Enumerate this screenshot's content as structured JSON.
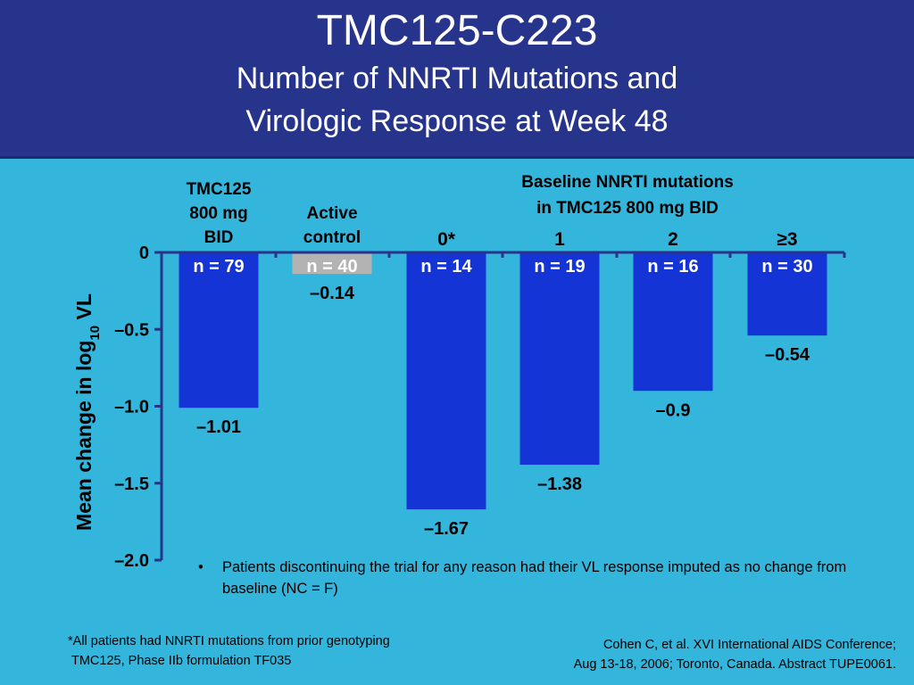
{
  "slide": {
    "title": "TMC125-C223",
    "subtitle_line1": "Number of NNRTI Mutations and",
    "subtitle_line2": "Virologic Response at Week 48"
  },
  "chart_data": {
    "type": "bar",
    "categories": [
      "TMC125 800 mg BID",
      "Active control",
      "0*",
      "1",
      "2",
      "≥3"
    ],
    "category_label_lines": [
      [
        "TMC125",
        "800 mg",
        "BID"
      ],
      [
        "Active",
        "control"
      ],
      [
        "0*"
      ],
      [
        "1"
      ],
      [
        "2"
      ],
      [
        "≥3"
      ]
    ],
    "n_labels": [
      "n = 79",
      "n = 40",
      "n = 14",
      "n = 19",
      "n = 16",
      "n = 30"
    ],
    "values": [
      -1.01,
      -0.14,
      -1.67,
      -1.38,
      -0.9,
      -0.54
    ],
    "value_labels": [
      "–1.01",
      "–0.14",
      "–1.67",
      "–1.38",
      "–0.9",
      "–0.54"
    ],
    "bar_colors": [
      "#1534d6",
      "#b3b3b3",
      "#1534d6",
      "#1534d6",
      "#1534d6",
      "#1534d6"
    ],
    "group_header_line1": "Baseline NNRTI mutations",
    "group_header_line2": "in TMC125 800 mg BID",
    "ylabel_main": "Mean change in log",
    "ylabel_subscript": "10",
    "ylabel_suffix": " VL",
    "yticks": [
      0,
      -0.5,
      -1.0,
      -1.5,
      -2.0
    ],
    "ytick_labels": [
      "0",
      "–0.5",
      "–1.0",
      "–1.5",
      "–2.0"
    ],
    "ylim": [
      -2.0,
      0
    ],
    "axis_color": "#27348c",
    "grid": false
  },
  "notes": {
    "bullet_symbol": "•",
    "bullet_text": "Patients discontinuing the trial for any reason had their VL response imputed as no change from baseline (NC = F)",
    "footnote_line1": "*All patients had NNRTI mutations from prior genotyping",
    "footnote_line2": "TMC125, Phase IIb formulation TF035",
    "citation_line1": "Cohen C, et al. XVI International AIDS Conference;",
    "citation_line2": "Aug 13-18, 2006; Toronto, Canada. Abstract TUPE0061."
  }
}
